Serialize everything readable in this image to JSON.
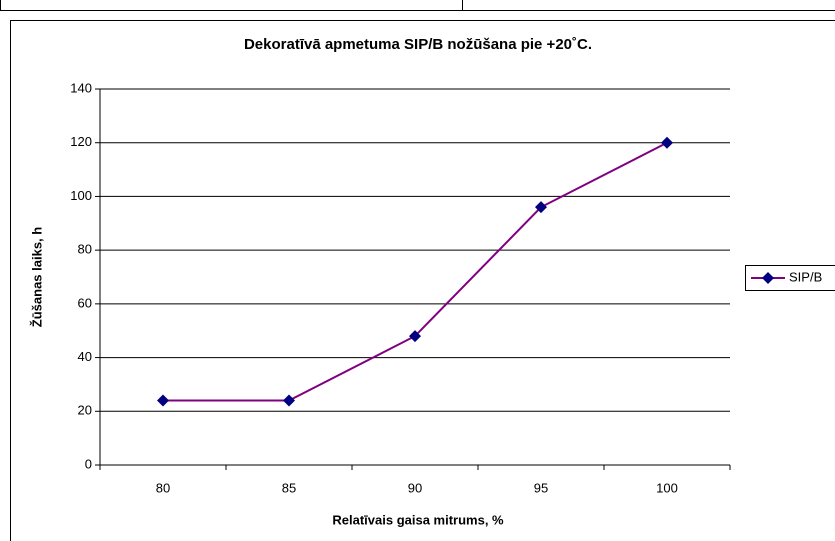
{
  "chart_data": {
    "type": "line",
    "title": "Dekoratīvā apmetuma SIP/B nožūšana pie +20˚C.",
    "x_label": "Relatīvais gaisa mitrums, %",
    "y_label": "Žūšanas laiks, h",
    "categories": [
      "80",
      "85",
      "90",
      "95",
      "100"
    ],
    "series": [
      {
        "name": "SIP/B",
        "color": "#800080",
        "marker_color": "#000080",
        "values": [
          24,
          24,
          48,
          96,
          120
        ]
      }
    ],
    "ylim": [
      0,
      140
    ],
    "yticks": [
      0,
      20,
      40,
      60,
      80,
      100,
      120,
      140
    ],
    "grid": true,
    "legend": "right"
  }
}
